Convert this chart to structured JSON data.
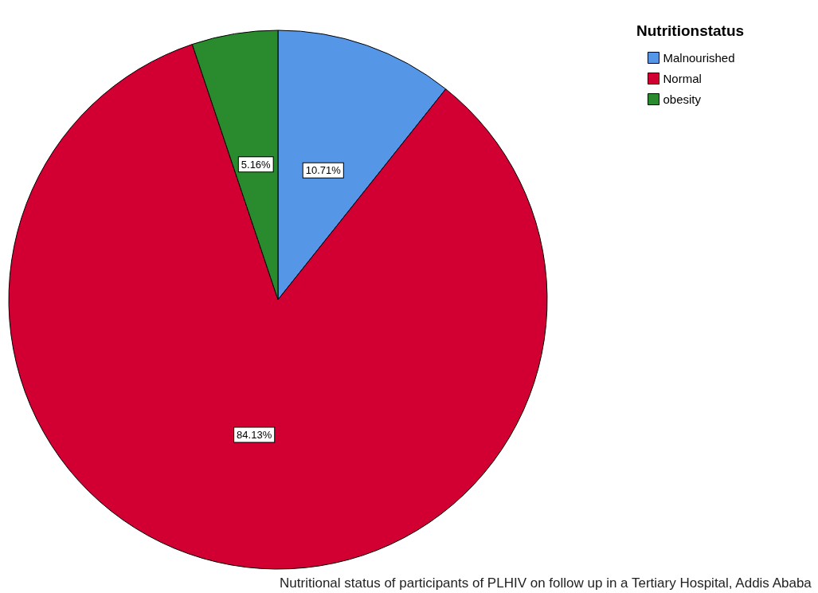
{
  "chart_data": {
    "type": "pie",
    "legend_title": "Nutritionstatus",
    "categories": [
      "Malnourished",
      "Normal",
      "obesity"
    ],
    "values": [
      10.71,
      84.13,
      5.16
    ],
    "value_labels": [
      "10.71%",
      "84.13%",
      "5.16%"
    ],
    "colors": [
      "#5597e6",
      "#d20032",
      "#2a8a2e"
    ],
    "legend": "top right",
    "annotations": [
      "Nutritional status of participants of PLHIV on follow up in a Tertiary Hospital, Addis Ababa"
    ]
  }
}
